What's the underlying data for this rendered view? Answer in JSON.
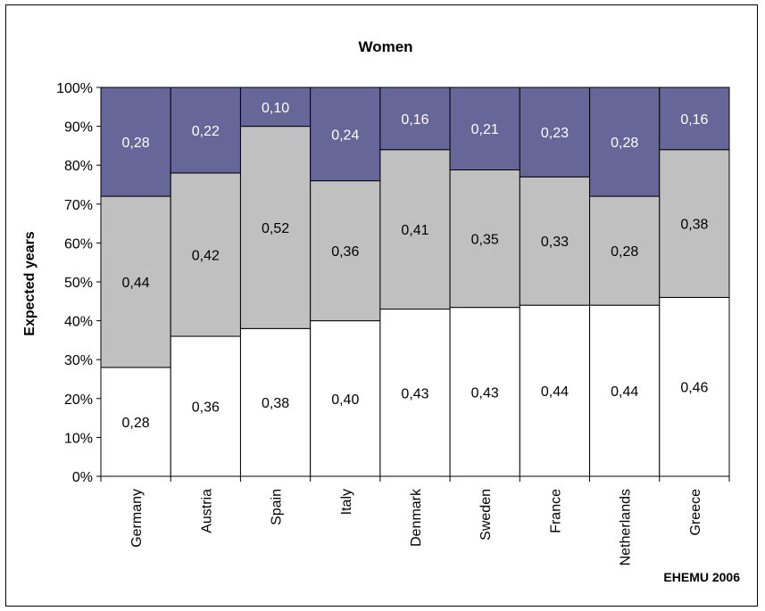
{
  "chart_data": {
    "type": "bar",
    "stacked": true,
    "percent": true,
    "title": "Women",
    "xlabel": "",
    "ylabel": "Expected years",
    "ylim": [
      0,
      100
    ],
    "yticks": [
      "0%",
      "10%",
      "20%",
      "30%",
      "40%",
      "50%",
      "60%",
      "70%",
      "80%",
      "90%",
      "100%"
    ],
    "categories": [
      "Germany",
      "Austria",
      "Spain",
      "Italy",
      "Denmark",
      "Sweden",
      "France",
      "Netherlands",
      "Greece"
    ],
    "series": [
      {
        "values": [
          0.28,
          0.36,
          0.38,
          0.4,
          0.43,
          0.43,
          0.44,
          0.44,
          0.46
        ],
        "labels": [
          "0,28",
          "0,36",
          "0,38",
          "0,40",
          "0,43",
          "0,43",
          "0,44",
          "0,44",
          "0,46"
        ],
        "color": "#ffffff"
      },
      {
        "values": [
          0.44,
          0.42,
          0.52,
          0.36,
          0.41,
          0.35,
          0.33,
          0.28,
          0.38
        ],
        "labels": [
          "0,44",
          "0,42",
          "0,52",
          "0,36",
          "0,41",
          "0,35",
          "0,33",
          "0,28",
          "0,38"
        ],
        "color": "#c0c0c0"
      },
      {
        "values": [
          0.28,
          0.22,
          0.1,
          0.24,
          0.16,
          0.21,
          0.23,
          0.28,
          0.16
        ],
        "labels": [
          "0,28",
          "0,22",
          "0,10",
          "0,24",
          "0,16",
          "0,21",
          "0,23",
          "0,28",
          "0,16"
        ],
        "color": "#666699"
      }
    ],
    "legend": "none",
    "grid": false
  },
  "source_note": "EHEMU 2006"
}
